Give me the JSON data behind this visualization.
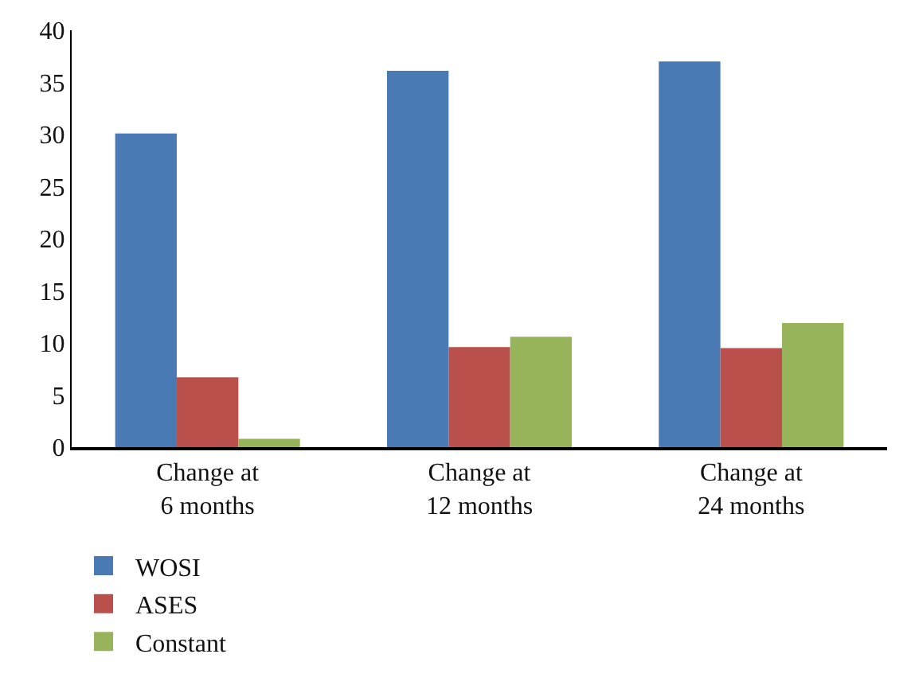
{
  "chart_data": {
    "type": "bar",
    "categories": [
      "Change at\n6 months",
      "Change at\n12 months",
      "Change at\n24 months"
    ],
    "series": [
      {
        "name": "WOSI",
        "color": "#4a7ab4",
        "values": [
          30.1,
          36.1,
          37.0
        ]
      },
      {
        "name": "ASES",
        "color": "#b9504c",
        "values": [
          6.7,
          9.6,
          9.5
        ]
      },
      {
        "name": "Constant",
        "color": "#98b45a",
        "values": [
          0.8,
          10.6,
          11.9
        ]
      }
    ],
    "ylim": [
      0,
      40
    ],
    "yticks": [
      0,
      5,
      10,
      15,
      20,
      25,
      30,
      35,
      40
    ],
    "legend": "bottom left"
  }
}
